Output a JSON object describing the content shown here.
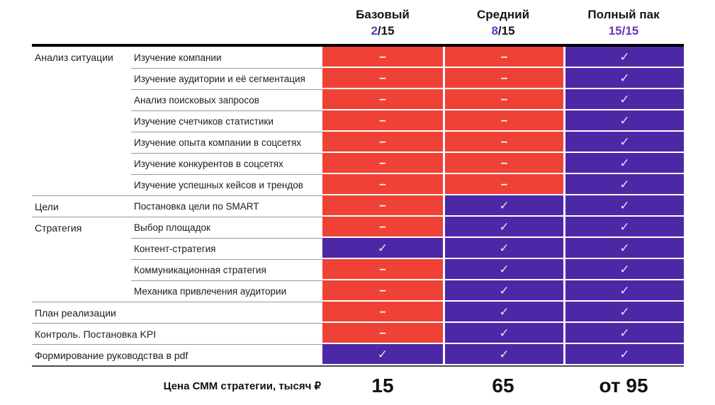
{
  "chart_data": {
    "type": "table",
    "title": "Цена СММ стратегии, тысяч ₽",
    "glyphs": {
      "dash": "–",
      "check": "✓"
    },
    "colors": {
      "not_included_bg": "#F04137",
      "included_bg": "#4C28A6",
      "score_accent": "#6337BC",
      "check_color": "#E7E2F6",
      "dash_color": "#FFFFFF"
    },
    "columns": [
      {
        "name": "Базовый",
        "score": "2/15",
        "score_highlight": "2",
        "score_rest": "/15",
        "price": "15"
      },
      {
        "name": "Средний",
        "score": "8/15",
        "score_highlight": "8",
        "score_rest": "/15",
        "price": "65"
      },
      {
        "name": "Полный пак",
        "score": "15/15",
        "score_highlight": "15/15",
        "score_rest": "",
        "price": "от 95"
      }
    ],
    "rows": [
      {
        "category": "Анализ ситуации",
        "label": "Изучение компании",
        "cells": [
          "dash",
          "dash",
          "check"
        ],
        "group_start": true
      },
      {
        "category": "",
        "label": "Изучение аудитории и её сегментация",
        "cells": [
          "dash",
          "dash",
          "check"
        ]
      },
      {
        "category": "",
        "label": "Анализ поисковых запросов",
        "cells": [
          "dash",
          "dash",
          "check"
        ]
      },
      {
        "category": "",
        "label": "Изучение счетчиков статистики",
        "cells": [
          "dash",
          "dash",
          "check"
        ]
      },
      {
        "category": "",
        "label": "Изучение опыта компании в соцсетях",
        "cells": [
          "dash",
          "dash",
          "check"
        ]
      },
      {
        "category": "",
        "label": "Изучение конкурентов в соцсетях",
        "cells": [
          "dash",
          "dash",
          "check"
        ]
      },
      {
        "category": "",
        "label": "Изучение успешных кейсов и трендов",
        "cells": [
          "dash",
          "dash",
          "check"
        ]
      },
      {
        "category": "Цели",
        "label": "Постановка цели по SMART",
        "cells": [
          "dash",
          "check",
          "check"
        ],
        "group_start": true
      },
      {
        "category": "Стратегия",
        "label": "Выбор площадок",
        "cells": [
          "dash",
          "check",
          "check"
        ],
        "group_start": true
      },
      {
        "category": "",
        "label": "Контент-стратегия",
        "cells": [
          "check",
          "check",
          "check"
        ]
      },
      {
        "category": "",
        "label": "Коммуникационная стратегия",
        "cells": [
          "dash",
          "check",
          "check"
        ]
      },
      {
        "category": "",
        "label": "Механика привлечения аудитории",
        "cells": [
          "dash",
          "check",
          "check"
        ]
      },
      {
        "full": true,
        "label": "План реализации",
        "cells": [
          "dash",
          "check",
          "check"
        ],
        "group_start": true
      },
      {
        "full": true,
        "label": "Контроль. Постановка KPI",
        "cells": [
          "dash",
          "check",
          "check"
        ],
        "group_start": true
      },
      {
        "full": true,
        "label": "Формирование руководства в pdf",
        "cells": [
          "check",
          "check",
          "check"
        ],
        "group_start": true
      }
    ]
  }
}
